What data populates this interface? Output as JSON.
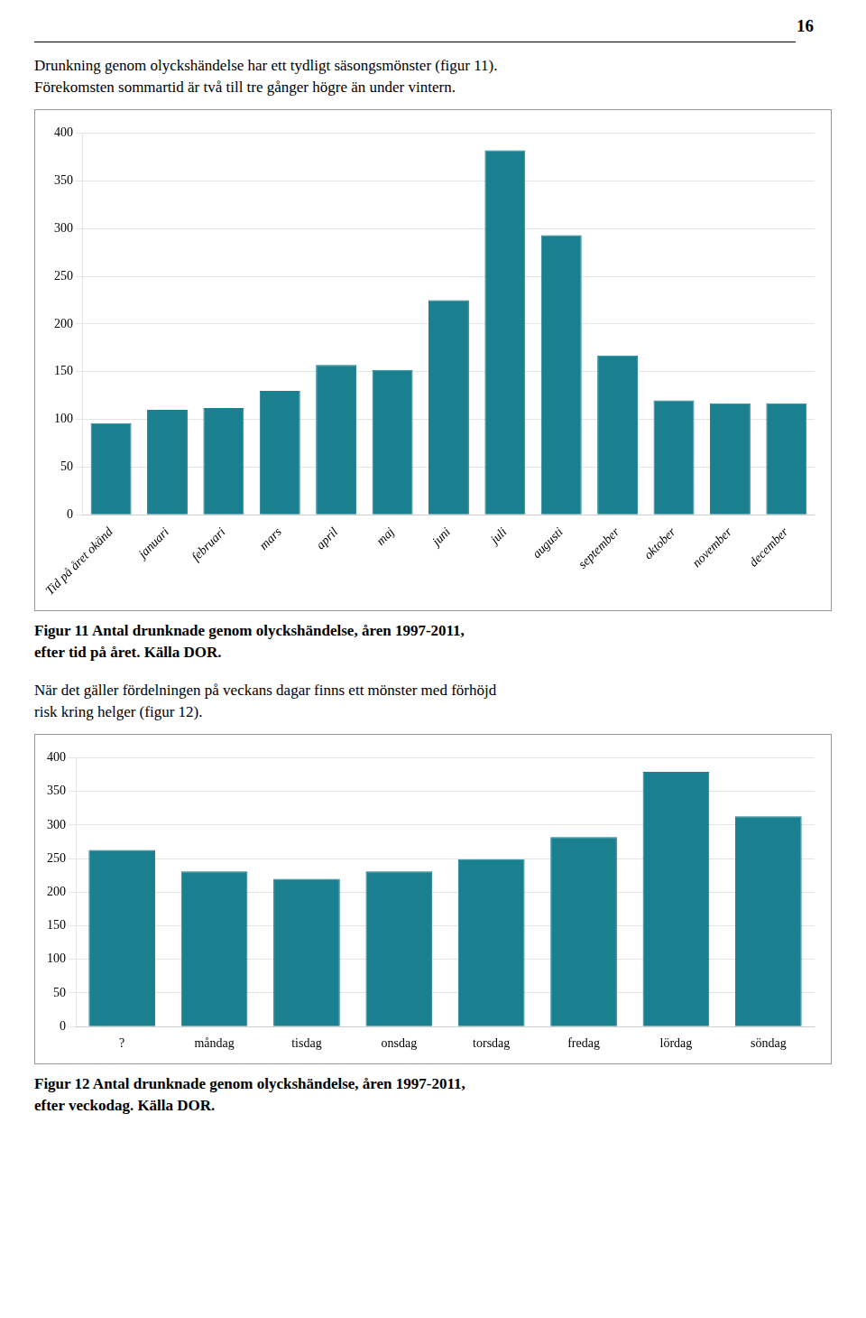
{
  "page_number": "16",
  "chart_data": [
    {
      "type": "bar",
      "annotations": [
        "Drunkning genom olyckshändelse har ett tydligt säsongsmönster (figur 11).",
        "Förekomsten sommartid är två till tre gånger högre än under vintern."
      ],
      "title": [
        "Figur 11 Antal drunknade genom olyckshändelse, åren 1997-2011,",
        "efter tid på året. Källa DOR."
      ],
      "categories": [
        "Tid på året okänd",
        "januari",
        "februari",
        "mars",
        "april",
        "maj",
        "juni",
        "juli",
        "augusti",
        "september",
        "oktober",
        "november",
        "december"
      ],
      "values": [
        96,
        110,
        112,
        130,
        157,
        152,
        225,
        382,
        293,
        167,
        120,
        117,
        117
      ],
      "color": "#1a7f8e",
      "ylim": [
        0,
        400
      ],
      "yticks": [
        0,
        50,
        100,
        150,
        200,
        250,
        300,
        350,
        400
      ],
      "grid": true
    },
    {
      "type": "bar",
      "annotations": [
        "När det gäller fördelningen på veckans dagar finns ett mönster med förhöjd",
        "risk kring helger (figur 12)."
      ],
      "title": [
        "Figur 12 Antal drunknade genom olyckshändelse, åren 1997-2011,",
        "efter veckodag. Källa DOR."
      ],
      "categories": [
        "?",
        "måndag",
        "tisdag",
        "onsdag",
        "torsdag",
        "fredag",
        "lördag",
        "söndag"
      ],
      "values": [
        263,
        231,
        220,
        231,
        249,
        282,
        379,
        313
      ],
      "color": "#1a7f8e",
      "ylim": [
        0,
        400
      ],
      "yticks": [
        0,
        50,
        100,
        150,
        200,
        250,
        300,
        350,
        400
      ],
      "grid": true
    }
  ]
}
